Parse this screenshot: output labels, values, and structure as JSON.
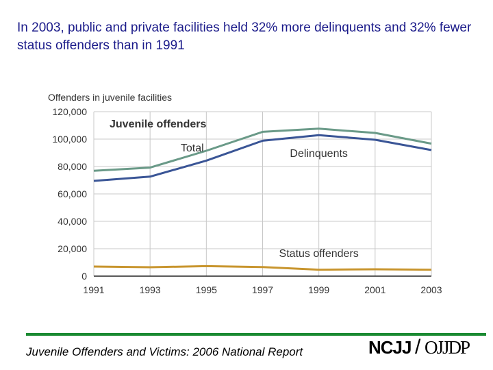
{
  "title": "In 2003, public and private facilities held 32% more delinquents and 32% fewer status offenders than in 1991",
  "footer": {
    "source": "Juvenile Offenders and Victims: 2006 National Report",
    "logo_left": "NCJJ",
    "logo_slash": "/",
    "logo_right": "OJJDP"
  },
  "colors": {
    "title": "#1b1b8a",
    "total": "#6a9a88",
    "delinquents": "#3a5596",
    "status": "#c8952e",
    "grid": "#c8c8c8",
    "footer_rule": "#1a8a32"
  },
  "chart_data": {
    "type": "line",
    "title": "Juvenile offenders",
    "ylabel": "Offenders in juvenile facilities",
    "xlabel": "",
    "x": [
      1991,
      1993,
      1995,
      1997,
      1999,
      2001,
      2003
    ],
    "x_tick_labels": [
      "1991",
      "1993",
      "1995",
      "1997",
      "1999",
      "2001",
      "2003"
    ],
    "ylim": [
      0,
      120000
    ],
    "y_ticks": [
      0,
      20000,
      40000,
      60000,
      80000,
      100000,
      120000
    ],
    "y_tick_labels": [
      "0",
      "20,000",
      "40,000",
      "60,000",
      "80,000",
      "100,000",
      "120,000"
    ],
    "grid": true,
    "series": [
      {
        "name": "Total",
        "label_x": 1994.5,
        "label_y": 91000,
        "values": [
          76900,
          79200,
          91500,
          105300,
          107600,
          104500,
          96700
        ]
      },
      {
        "name": "Delinquents",
        "label_x": 1999,
        "label_y": 87000,
        "values": [
          69500,
          72600,
          84300,
          98800,
          102900,
          99500,
          92000
        ]
      },
      {
        "name": "Status offenders",
        "label_x": 1999,
        "label_y": 14000,
        "values": [
          7000,
          6500,
          7300,
          6600,
          4700,
          5000,
          4700
        ]
      }
    ]
  }
}
